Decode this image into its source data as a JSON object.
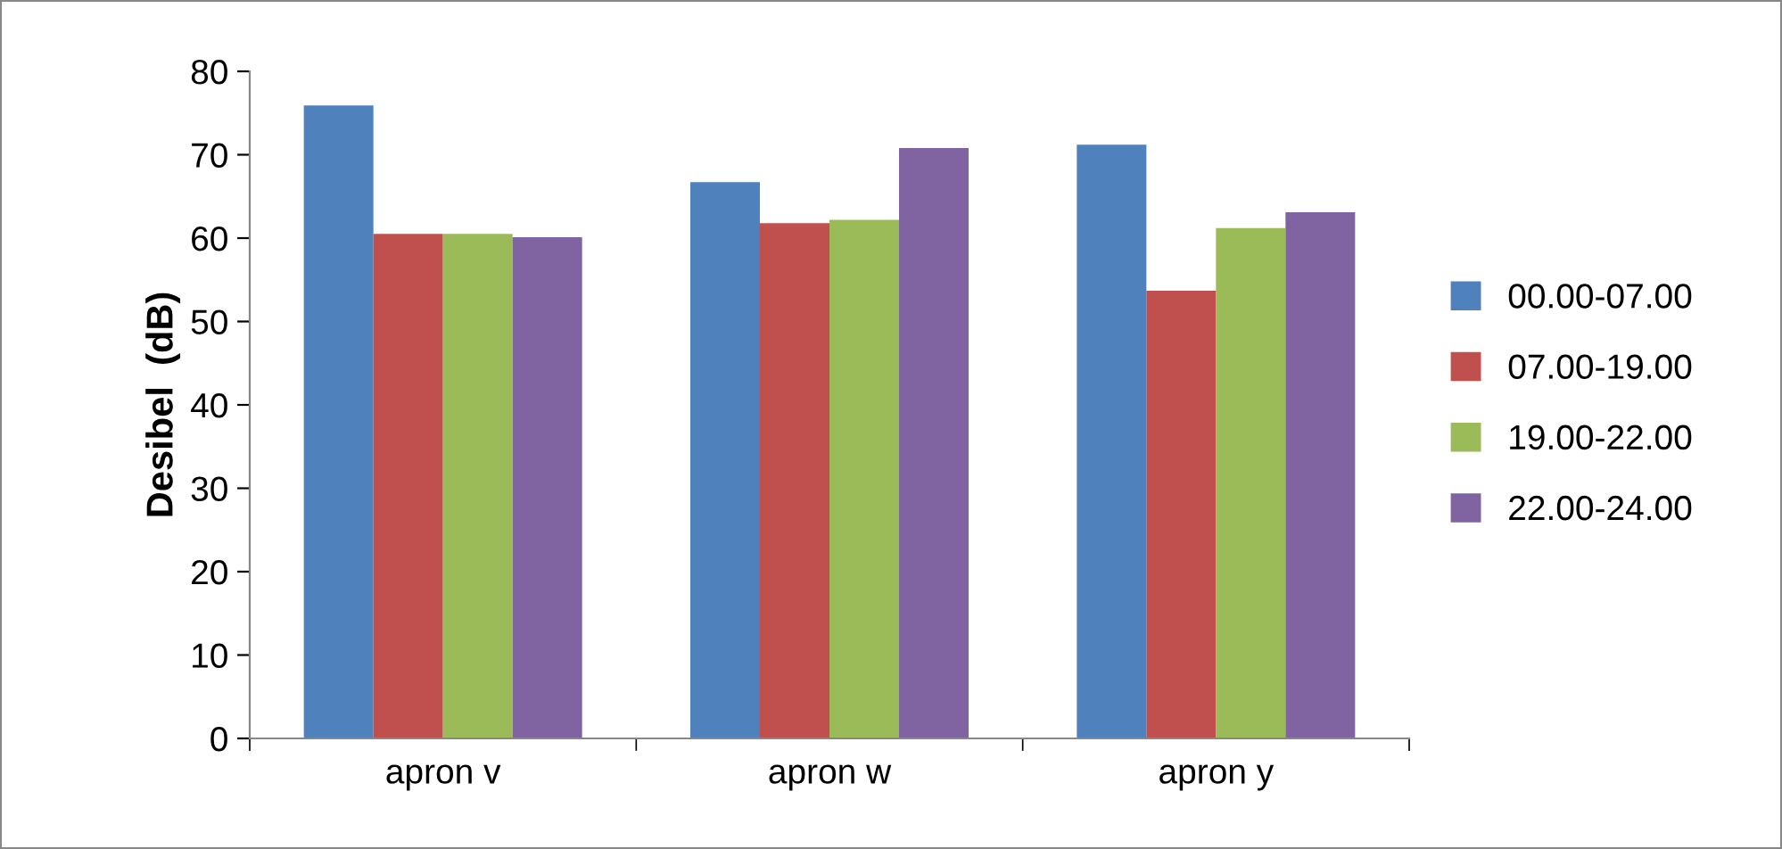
{
  "chart_data": {
    "type": "bar",
    "ylabel": "Desibel  (dB)",
    "categories": [
      "apron v",
      "apron w",
      "apron y"
    ],
    "series": [
      {
        "name": "00.00-07.00",
        "color": "#4f81bd",
        "values": [
          75.9,
          66.7,
          71.2
        ]
      },
      {
        "name": "07.00-19.00",
        "color": "#c0504d",
        "values": [
          60.5,
          61.8,
          53.7
        ]
      },
      {
        "name": "19.00-22.00",
        "color": "#9bbb59",
        "values": [
          60.5,
          62.2,
          61.2
        ]
      },
      {
        "name": "22.00-24.00",
        "color": "#8064a2",
        "values": [
          60.1,
          70.8,
          63.1
        ]
      }
    ],
    "ylim": [
      0,
      80
    ],
    "yticks": [
      0,
      10,
      20,
      30,
      40,
      50,
      60,
      70,
      80
    ],
    "grid": false,
    "legend": "right"
  }
}
